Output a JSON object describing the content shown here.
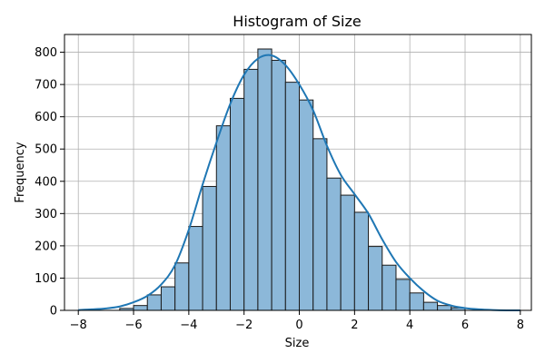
{
  "chart_data": {
    "type": "bar",
    "title": "Histogram of Size",
    "xlabel": "Size",
    "ylabel": "Frequency",
    "xlim": [
      -8.5,
      8.4
    ],
    "ylim": [
      0,
      855
    ],
    "x_ticks": [
      -8,
      -6,
      -4,
      -2,
      0,
      2,
      4,
      6,
      8
    ],
    "y_ticks": [
      0,
      100,
      200,
      300,
      400,
      500,
      600,
      700,
      800
    ],
    "grid": true,
    "bin_edges": [
      -6.5,
      -6.0,
      -5.5,
      -5.0,
      -4.5,
      -4.0,
      -3.5,
      -3.0,
      -2.5,
      -2.0,
      -1.5,
      -1.0,
      -0.5,
      0.0,
      0.5,
      1.0,
      1.5,
      2.0,
      2.5,
      3.0,
      3.5,
      4.0,
      4.5,
      5.0,
      5.5,
      6.0
    ],
    "values": [
      6,
      15,
      48,
      73,
      147,
      260,
      384,
      572,
      657,
      747,
      810,
      775,
      707,
      652,
      532,
      410,
      357,
      304,
      198,
      140,
      96,
      54,
      25,
      15,
      8
    ],
    "kde": {
      "x": [
        -8,
        -7.5,
        -7,
        -6.5,
        -6,
        -5.5,
        -5,
        -4.5,
        -4,
        -3.5,
        -3,
        -2.5,
        -2,
        -1.5,
        -1,
        -0.5,
        0,
        0.5,
        1,
        1.5,
        2,
        2.5,
        3,
        3.5,
        4,
        4.5,
        5,
        5.5,
        6,
        6.5,
        7,
        7.5,
        8
      ],
      "y": [
        1,
        3,
        6,
        12,
        25,
        45,
        80,
        140,
        250,
        390,
        520,
        640,
        730,
        780,
        790,
        760,
        700,
        620,
        510,
        420,
        360,
        300,
        220,
        150,
        100,
        60,
        30,
        15,
        7,
        3,
        1,
        0,
        0
      ]
    },
    "colors": {
      "bar_fill": "#8cb8d9",
      "bar_edge": "#1a1a1a",
      "kde_line": "#1f77b4",
      "grid": "#b0b0b0"
    }
  }
}
